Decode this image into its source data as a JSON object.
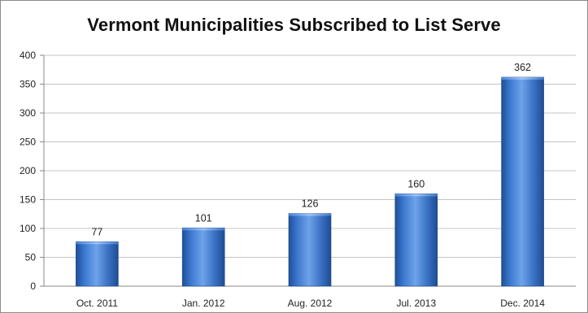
{
  "chart_data": {
    "type": "bar",
    "title": "Vermont Municipalities Subscribed to List Serve",
    "categories": [
      "Oct. 2011",
      "Jan. 2012",
      "Aug. 2012",
      "Jul. 2013",
      "Dec. 2014"
    ],
    "values": [
      77,
      101,
      126,
      160,
      362
    ],
    "data_labels": [
      "77",
      "101",
      "126",
      "160",
      "362"
    ],
    "y_ticks": [
      "0",
      "50",
      "100",
      "150",
      "200",
      "250",
      "300",
      "350",
      "400"
    ],
    "ylim": [
      0,
      400
    ],
    "grid": true,
    "legend": "none",
    "bar_color": "#3a74c4"
  }
}
